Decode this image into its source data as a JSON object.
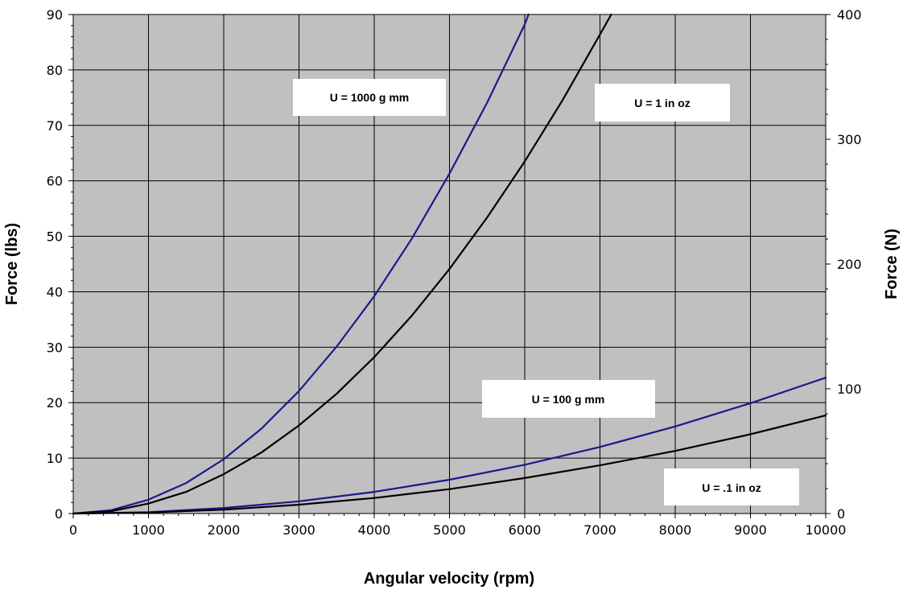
{
  "chart_data": {
    "type": "line",
    "title": "",
    "xlabel": "Angular velocity (rpm)",
    "ylabel": "Force (lbs)",
    "y2label": "Force (N)",
    "xlim": [
      0,
      10000
    ],
    "ylim": [
      0,
      90
    ],
    "y2lim": [
      0,
      400
    ],
    "x_ticks": [
      "0",
      "1000",
      "2000",
      "3000",
      "4000",
      "5000",
      "6000",
      "7000",
      "8000",
      "9000",
      "10000"
    ],
    "y_ticks": [
      "0",
      "10",
      "20",
      "30",
      "40",
      "50",
      "60",
      "70",
      "80",
      "90"
    ],
    "y2_ticks": [
      "0",
      "100",
      "200",
      "300",
      "400"
    ],
    "grid": true,
    "plot_background": "#c0c0c0",
    "series": [
      {
        "name": "U = 1000 g mm",
        "color": "#1a1a8c",
        "x": [
          0,
          500,
          1000,
          1500,
          2000,
          2500,
          3000,
          3500,
          4000,
          4500,
          5000,
          5500,
          6000,
          6050
        ],
        "y": [
          0,
          0.6,
          2.5,
          5.5,
          9.8,
          15.3,
          22.1,
          30.1,
          39.2,
          49.6,
          61.3,
          74.1,
          88.2,
          90
        ]
      },
      {
        "name": "U = 1 in oz",
        "color": "#000000",
        "x": [
          0,
          500,
          1000,
          1500,
          2000,
          2500,
          3000,
          3500,
          4000,
          4500,
          5000,
          5500,
          6000,
          6500,
          7000,
          7150
        ],
        "y": [
          0,
          0.4,
          1.8,
          3.9,
          7.1,
          11,
          15.9,
          21.6,
          28.2,
          35.7,
          44.1,
          53.4,
          63.5,
          74.5,
          86.4,
          90
        ]
      },
      {
        "name": "U = 100 g mm",
        "color": "#1a1a8c",
        "x": [
          0,
          1000,
          2000,
          3000,
          4000,
          5000,
          6000,
          7000,
          8000,
          9000,
          10000
        ],
        "y": [
          0,
          0.25,
          1,
          2.2,
          3.9,
          6.1,
          8.8,
          12,
          15.7,
          19.9,
          24.5
        ]
      },
      {
        "name": "U = .1 in oz",
        "color": "#000000",
        "x": [
          0,
          1000,
          2000,
          3000,
          4000,
          5000,
          6000,
          7000,
          8000,
          9000,
          10000
        ],
        "y": [
          0,
          0.18,
          0.7,
          1.6,
          2.8,
          4.4,
          6.4,
          8.7,
          11.3,
          14.3,
          17.7
        ]
      }
    ],
    "annotations": [
      "U = 1000 g mm",
      "U = 1 in oz",
      "U = 100 g mm",
      "U = .1 in oz"
    ]
  }
}
